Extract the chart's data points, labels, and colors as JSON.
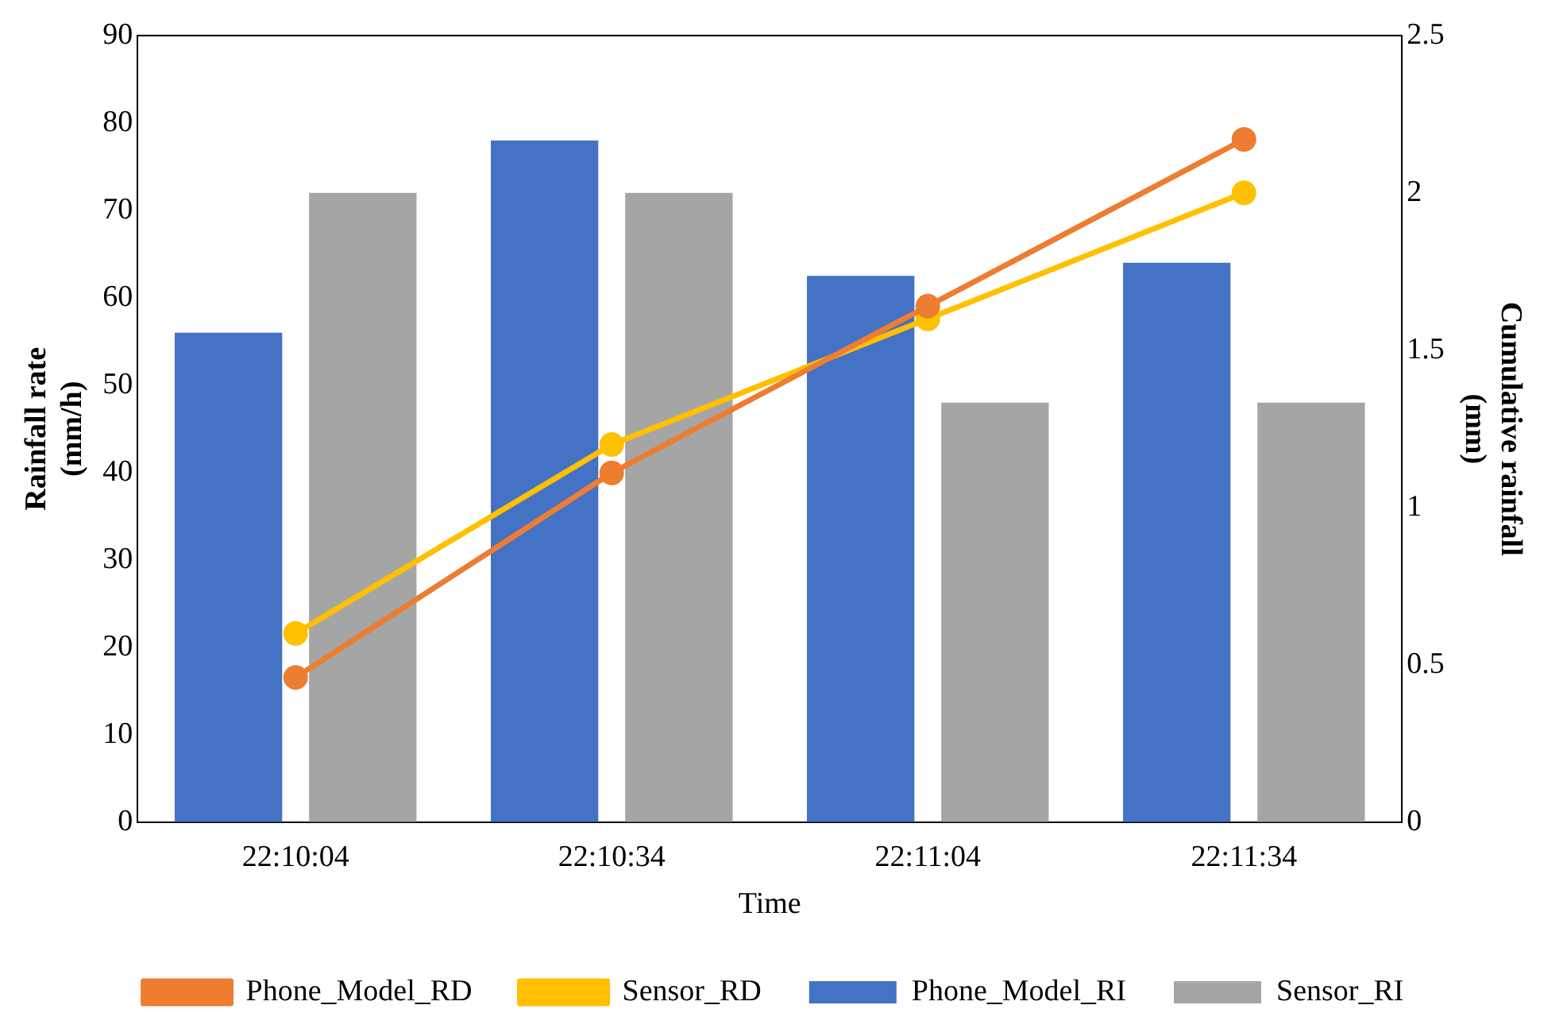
{
  "chart_data": {
    "type": "bar",
    "xlabel": "Time",
    "ylabel": "Rainfall rate\n(mm/h)",
    "y2label": "Cumulative rainfall\n(mm)",
    "categories": [
      "22:10:04",
      "22:10:34",
      "22:11:04",
      "22:11:34"
    ],
    "series": [
      {
        "name": "Phone_Model_RI",
        "color": "#4472c4",
        "values": [
          56,
          78,
          62.5,
          64
        ]
      },
      {
        "name": "Sensor_RI",
        "color": "#a5a5a5",
        "values": [
          72,
          72,
          48,
          48
        ]
      },
      {
        "name": "Phone_Model_RD",
        "type": "line",
        "axis": "y2",
        "color": "#ed7d31",
        "values": [
          0.46,
          1.11,
          1.64,
          2.17
        ]
      },
      {
        "name": "Sensor_RD",
        "type": "line",
        "axis": "y2",
        "color": "#ffc000",
        "values": [
          0.6,
          1.2,
          1.6,
          2.0
        ]
      }
    ],
    "ylim": [
      0,
      90
    ],
    "yticks": [
      0,
      10,
      20,
      30,
      40,
      50,
      60,
      70,
      80,
      90
    ],
    "y2lim": [
      0,
      2.5
    ],
    "y2ticks": [
      0,
      0.5,
      1,
      1.5,
      2,
      2.5
    ],
    "grid": false,
    "legend": "bottom",
    "marker": "circle",
    "line_style": "solid"
  }
}
